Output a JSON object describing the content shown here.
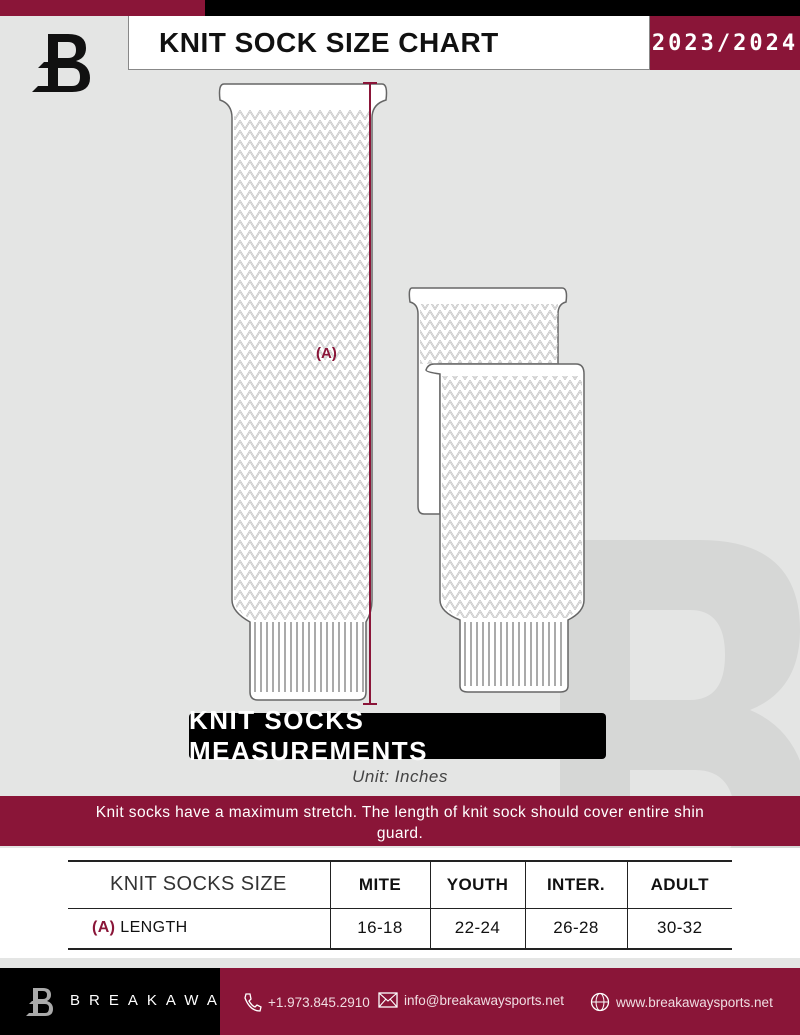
{
  "header": {
    "title": "KNIT SOCK SIZE CHART",
    "season": "2023/2024"
  },
  "diagram": {
    "measure_label": "(A)"
  },
  "section_title": "KNIT SOCKS MEASUREMENTS",
  "unit": "Unit: Inches",
  "note": "Knit socks have a maximum stretch. The length of knit sock should cover entire shin guard.",
  "table": {
    "columns": [
      "KNIT SOCKS SIZE",
      "MITE",
      "YOUTH",
      "INTER.",
      "ADULT"
    ],
    "rows": [
      {
        "code": "(A)",
        "label": "LENGTH",
        "values": [
          "16-18",
          "22-24",
          "26-28",
          "30-32"
        ]
      }
    ]
  },
  "footer": {
    "brand": "BREAKAWAY",
    "phone": "+1.973.845.2910",
    "email": "info@breakawaysports.net",
    "website": "www.breakawaysports.net"
  },
  "colors": {
    "accent": "#8a1538",
    "background": "#e4e5e4"
  }
}
